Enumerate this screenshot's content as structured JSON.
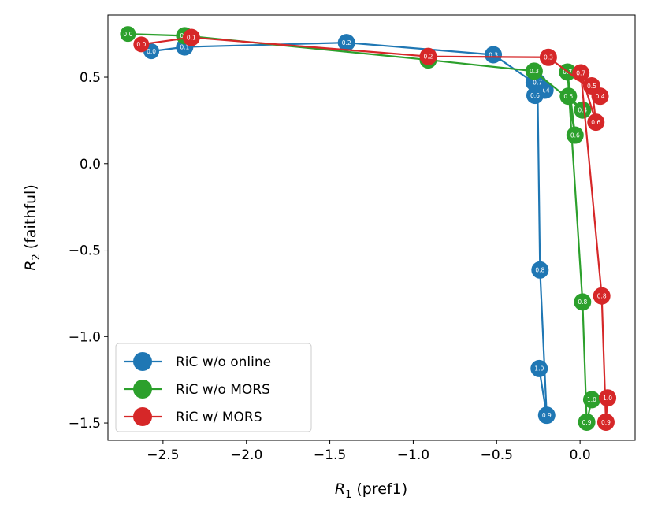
{
  "chart_data": {
    "type": "line",
    "xlabel": "R",
    "xlabel_sub": "1",
    "xlabel_rest": " (pref1)",
    "ylabel": "R",
    "ylabel_sub": "2",
    "ylabel_rest": " (faithful)",
    "xlim": [
      -2.83,
      0.33
    ],
    "ylim": [
      -1.6,
      0.86
    ],
    "xticks": [
      -2.5,
      -2.0,
      -1.5,
      -1.0,
      -0.5,
      0.0
    ],
    "xtick_labels": [
      "−2.5",
      "−2.0",
      "−1.5",
      "−1.0",
      "−0.5",
      "0.0"
    ],
    "yticks": [
      0.5,
      0.0,
      -0.5,
      -1.0,
      -1.5
    ],
    "ytick_labels": [
      "0.5",
      "0.0",
      "−0.5",
      "−1.0",
      "−1.5"
    ],
    "legend_position": "lower-left",
    "series": [
      {
        "name": "RiC w/o online",
        "color": "#1f77b4",
        "points": [
          {
            "x": -2.57,
            "y": 0.65,
            "label": "0.0"
          },
          {
            "x": -2.37,
            "y": 0.675,
            "label": "0.1"
          },
          {
            "x": -1.4,
            "y": 0.7,
            "label": "0.2"
          },
          {
            "x": -0.52,
            "y": 0.63,
            "label": "0.3"
          },
          {
            "x": -0.21,
            "y": 0.425,
            "label": "0.4"
          },
          {
            "x": -0.275,
            "y": 0.47,
            "label": "0.5"
          },
          {
            "x": -0.27,
            "y": 0.395,
            "label": "0.6"
          },
          {
            "x": -0.255,
            "y": 0.47,
            "label": "0.7"
          },
          {
            "x": -0.24,
            "y": -0.615,
            "label": "0.8"
          },
          {
            "x": -0.2,
            "y": -1.455,
            "label": "0.9"
          },
          {
            "x": -0.245,
            "y": -1.185,
            "label": "1.0"
          }
        ]
      },
      {
        "name": "RiC w/o MORS",
        "color": "#2ca02c",
        "points": [
          {
            "x": -2.71,
            "y": 0.75,
            "label": "0.0"
          },
          {
            "x": -2.37,
            "y": 0.74,
            "label": "0.1"
          },
          {
            "x": -0.91,
            "y": 0.6,
            "label": "0.2"
          },
          {
            "x": -0.275,
            "y": 0.535,
            "label": "0.3"
          },
          {
            "x": 0.015,
            "y": 0.31,
            "label": "0.4"
          },
          {
            "x": -0.07,
            "y": 0.39,
            "label": "0.5"
          },
          {
            "x": -0.03,
            "y": 0.165,
            "label": "0.6"
          },
          {
            "x": -0.075,
            "y": 0.53,
            "label": "0.7"
          },
          {
            "x": 0.015,
            "y": -0.8,
            "label": "0.8"
          },
          {
            "x": 0.04,
            "y": -1.495,
            "label": "0.9"
          },
          {
            "x": 0.07,
            "y": -1.365,
            "label": "1.0"
          }
        ]
      },
      {
        "name": "RiC w/ MORS",
        "color": "#d62728",
        "points": [
          {
            "x": -2.63,
            "y": 0.69,
            "label": "0.0"
          },
          {
            "x": -2.33,
            "y": 0.73,
            "label": "0.1"
          },
          {
            "x": -0.91,
            "y": 0.62,
            "label": "0.2"
          },
          {
            "x": -0.19,
            "y": 0.615,
            "label": "0.3"
          },
          {
            "x": 0.12,
            "y": 0.39,
            "label": "0.4"
          },
          {
            "x": 0.07,
            "y": 0.45,
            "label": "0.5"
          },
          {
            "x": 0.095,
            "y": 0.24,
            "label": "0.6"
          },
          {
            "x": 0.005,
            "y": 0.525,
            "label": "0.7"
          },
          {
            "x": 0.13,
            "y": -0.765,
            "label": "0.8"
          },
          {
            "x": 0.155,
            "y": -1.495,
            "label": "0.9"
          },
          {
            "x": 0.165,
            "y": -1.355,
            "label": "1.0"
          }
        ]
      }
    ]
  }
}
